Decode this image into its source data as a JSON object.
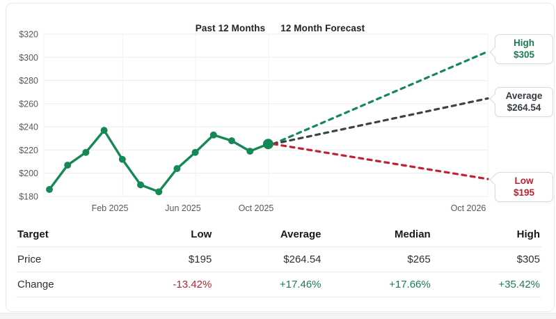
{
  "colors": {
    "green_line": "#168856",
    "green_text": "#1b7b50",
    "red_line": "#c22133",
    "red_text": "#bd2130",
    "dark_line": "#3c4249",
    "dark_text": "#343b43",
    "grid": "#ececec",
    "grid_vertical": "#f1f1f1"
  },
  "chart": {
    "title_left": "Past 12 Months",
    "title_right": "12 Month Forecast"
  },
  "chart_data": {
    "type": "line",
    "title": "Past 12 Months / 12 Month Forecast",
    "y_tick_values": [
      320,
      300,
      280,
      260,
      240,
      220,
      200,
      180
    ],
    "y_tick_labels": [
      "$320",
      "$300",
      "$280",
      "$260",
      "$240",
      "$220",
      "$200",
      "$180"
    ],
    "x_tick_labels": [
      "Feb 2025",
      "Jun 2025",
      "Oct 2025",
      "Oct 2026"
    ],
    "ylim": [
      180,
      320
    ],
    "grid": true,
    "series": {
      "history": {
        "name": "Past 12 Months",
        "values": [
          186,
          207,
          218,
          237,
          212,
          190,
          184,
          204,
          218,
          233,
          228,
          219,
          225.21
        ],
        "color": "#168856",
        "style": "solid"
      },
      "forecast": [
        {
          "name": "High",
          "target": 305,
          "change_pct": "+35.42%",
          "color": "#168856",
          "style": "dashed"
        },
        {
          "name": "Average",
          "target": 264.54,
          "change_pct": "+17.46%",
          "color": "#3c4249",
          "style": "dashed"
        },
        {
          "name": "Low",
          "target": 195,
          "change_pct": "-13.42%",
          "color": "#c22133",
          "style": "dashed"
        }
      ]
    },
    "legend_position": "top-center"
  },
  "callouts": {
    "high": {
      "label": "High",
      "value": "$305"
    },
    "average": {
      "label": "Average",
      "value": "$264.54"
    },
    "low": {
      "label": "Low",
      "value": "$195"
    }
  },
  "table": {
    "headers": [
      "Target",
      "Low",
      "Average",
      "Median",
      "High"
    ],
    "rows": [
      {
        "label": "Price",
        "values": [
          "$195",
          "$264.54",
          "$265",
          "$305"
        ]
      },
      {
        "label": "Change",
        "values": [
          "-13.42%",
          "+17.46%",
          "+17.66%",
          "+35.42%"
        ]
      }
    ]
  }
}
